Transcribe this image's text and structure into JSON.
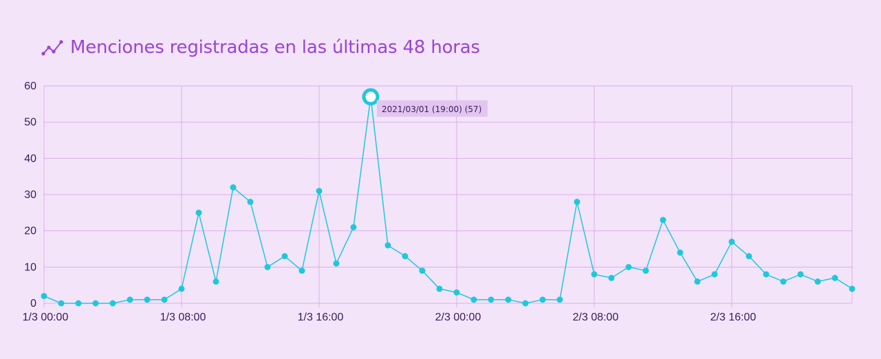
{
  "header": {
    "title": "Menciones registradas en las últimas 48 horas",
    "icon": "line-chart-icon"
  },
  "colors": {
    "background": "#f3e4f9",
    "grid": "#dcaee8",
    "line": "#1ec8dc",
    "title": "#9a44d6",
    "tooltip_bg": "#e3c6f0"
  },
  "chart_data": {
    "type": "line",
    "title": "Menciones registradas en las últimas 48 horas",
    "xlabel": "",
    "ylabel": "",
    "ylim": [
      0,
      60
    ],
    "yticks": [
      0,
      10,
      20,
      30,
      40,
      50,
      60
    ],
    "xlim": [
      "2021-03-01 00:00",
      "2021-03-02 23:00"
    ],
    "xtick_labels": [
      "1/3 00:00",
      "1/3 08:00",
      "1/3 16:00",
      "2/3 00:00",
      "2/3 08:00",
      "2/3 16:00"
    ],
    "grid": true,
    "x": [
      "2021-03-01 00:00",
      "2021-03-01 01:00",
      "2021-03-01 02:00",
      "2021-03-01 03:00",
      "2021-03-01 04:00",
      "2021-03-01 05:00",
      "2021-03-01 06:00",
      "2021-03-01 07:00",
      "2021-03-01 08:00",
      "2021-03-01 09:00",
      "2021-03-01 10:00",
      "2021-03-01 11:00",
      "2021-03-01 12:00",
      "2021-03-01 13:00",
      "2021-03-01 14:00",
      "2021-03-01 15:00",
      "2021-03-01 16:00",
      "2021-03-01 17:00",
      "2021-03-01 18:00",
      "2021-03-01 19:00",
      "2021-03-01 20:00",
      "2021-03-01 21:00",
      "2021-03-01 22:00",
      "2021-03-01 23:00",
      "2021-03-02 00:00",
      "2021-03-02 01:00",
      "2021-03-02 02:00",
      "2021-03-02 03:00",
      "2021-03-02 04:00",
      "2021-03-02 05:00",
      "2021-03-02 06:00",
      "2021-03-02 07:00",
      "2021-03-02 08:00",
      "2021-03-02 09:00",
      "2021-03-02 10:00",
      "2021-03-02 11:00",
      "2021-03-02 12:00",
      "2021-03-02 13:00",
      "2021-03-02 14:00",
      "2021-03-02 15:00",
      "2021-03-02 16:00",
      "2021-03-02 17:00",
      "2021-03-02 18:00",
      "2021-03-02 19:00",
      "2021-03-02 20:00",
      "2021-03-02 21:00",
      "2021-03-02 22:00",
      "2021-03-02 23:00"
    ],
    "series": [
      {
        "values": [
          2,
          0,
          0,
          0,
          0,
          1,
          1,
          1,
          4,
          25,
          6,
          32,
          28,
          10,
          13,
          9,
          31,
          11,
          21,
          57,
          16,
          13,
          9,
          4,
          3,
          1,
          1,
          1,
          0,
          1,
          1,
          28,
          8,
          7,
          10,
          9,
          23,
          14,
          6,
          8,
          17,
          13,
          8,
          6,
          8,
          6,
          7,
          4
        ]
      }
    ],
    "highlight": {
      "index": 19,
      "label": "2021/03/01 (19:00) (57)"
    }
  }
}
